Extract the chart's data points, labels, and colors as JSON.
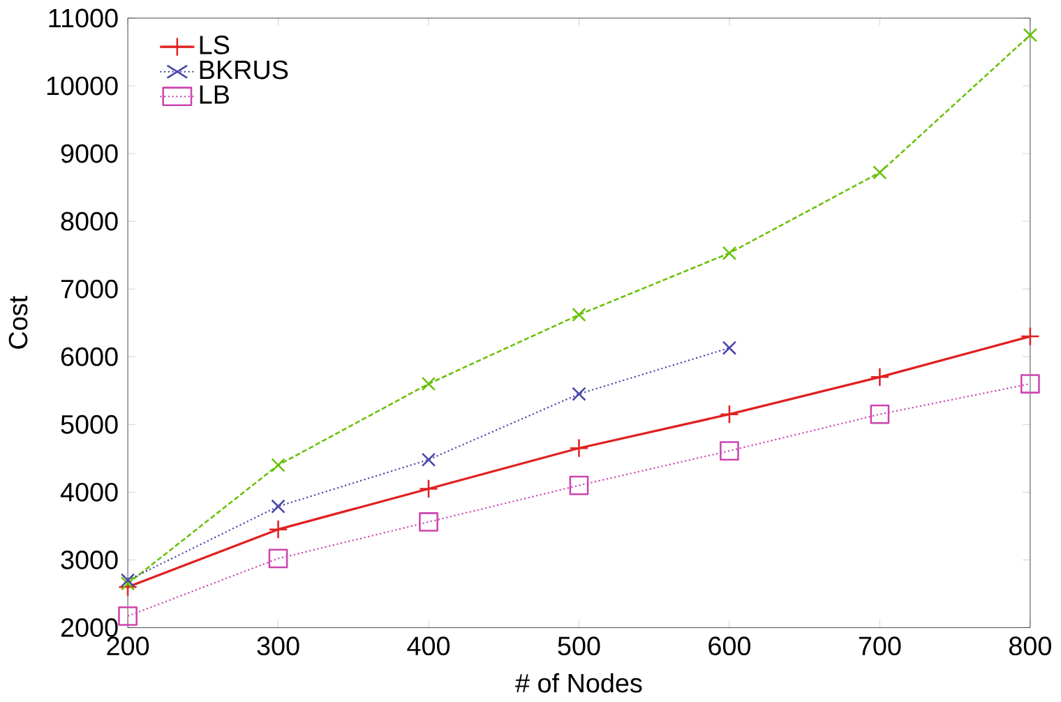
{
  "chart_data": {
    "type": "line",
    "xlabel": "# of Nodes",
    "ylabel": "Cost",
    "x": [
      200,
      300,
      400,
      500,
      600,
      700,
      800
    ],
    "xlim": [
      200,
      800
    ],
    "xticks": [
      200,
      300,
      400,
      500,
      600,
      700,
      800
    ],
    "ylim": [
      2000,
      11000
    ],
    "yticks": [
      2000,
      3000,
      4000,
      5000,
      6000,
      7000,
      8000,
      9000,
      10000,
      11000
    ],
    "legend": "top left",
    "grid": false,
    "series": [
      {
        "name": "LS",
        "color": "#e02020",
        "marker": "plus",
        "line_style": "solid",
        "values": [
          2600,
          3450,
          4050,
          4650,
          5150,
          5700,
          6300
        ]
      },
      {
        "color": "#66c000",
        "marker": "cross",
        "line_style": "dashed",
        "values": [
          2650,
          4400,
          5600,
          6620,
          7530,
          8720,
          10750
        ]
      },
      {
        "name": "BKRUS",
        "color": "#4646a8",
        "marker": "cross",
        "line_style": "dotted",
        "values": [
          2700,
          3790,
          4480,
          5450,
          6130,
          null,
          null
        ]
      },
      {
        "name": "LB",
        "color": "#cc44b0",
        "marker": "square",
        "line_style": "dotted",
        "values": [
          2170,
          3020,
          3560,
          4100,
          4610,
          5150,
          5600
        ]
      }
    ]
  }
}
